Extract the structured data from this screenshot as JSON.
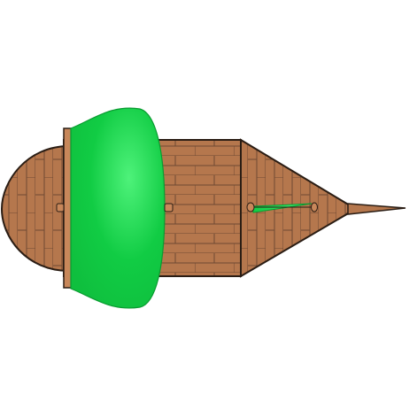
{
  "scene": {
    "background": "#ffffff",
    "sprite": "sailing-ship-top-down",
    "orientation": "bow-right"
  },
  "palette": {
    "wood": "#b5774d",
    "wood_dark": "#8a5634",
    "plank_line": "#6e4a33",
    "outline": "#2a1d14",
    "sail_green": "#11cc44",
    "sail_highlight": "#4ef27a",
    "sail_edge": "#0a9b31",
    "mast_fill": "#c8875a"
  },
  "parts": {
    "stern": "rounded-stern-deck",
    "main_deck": "main-deck",
    "bow": "triangular-bow",
    "bowsprit": "bowsprit-spar",
    "main_sail": "main-sail",
    "jib_sail": "jib-sail",
    "masts": [
      "aft-mast-icon",
      "main-mast-icon",
      "fore-mast-icon",
      "bow-mast-icon"
    ]
  }
}
